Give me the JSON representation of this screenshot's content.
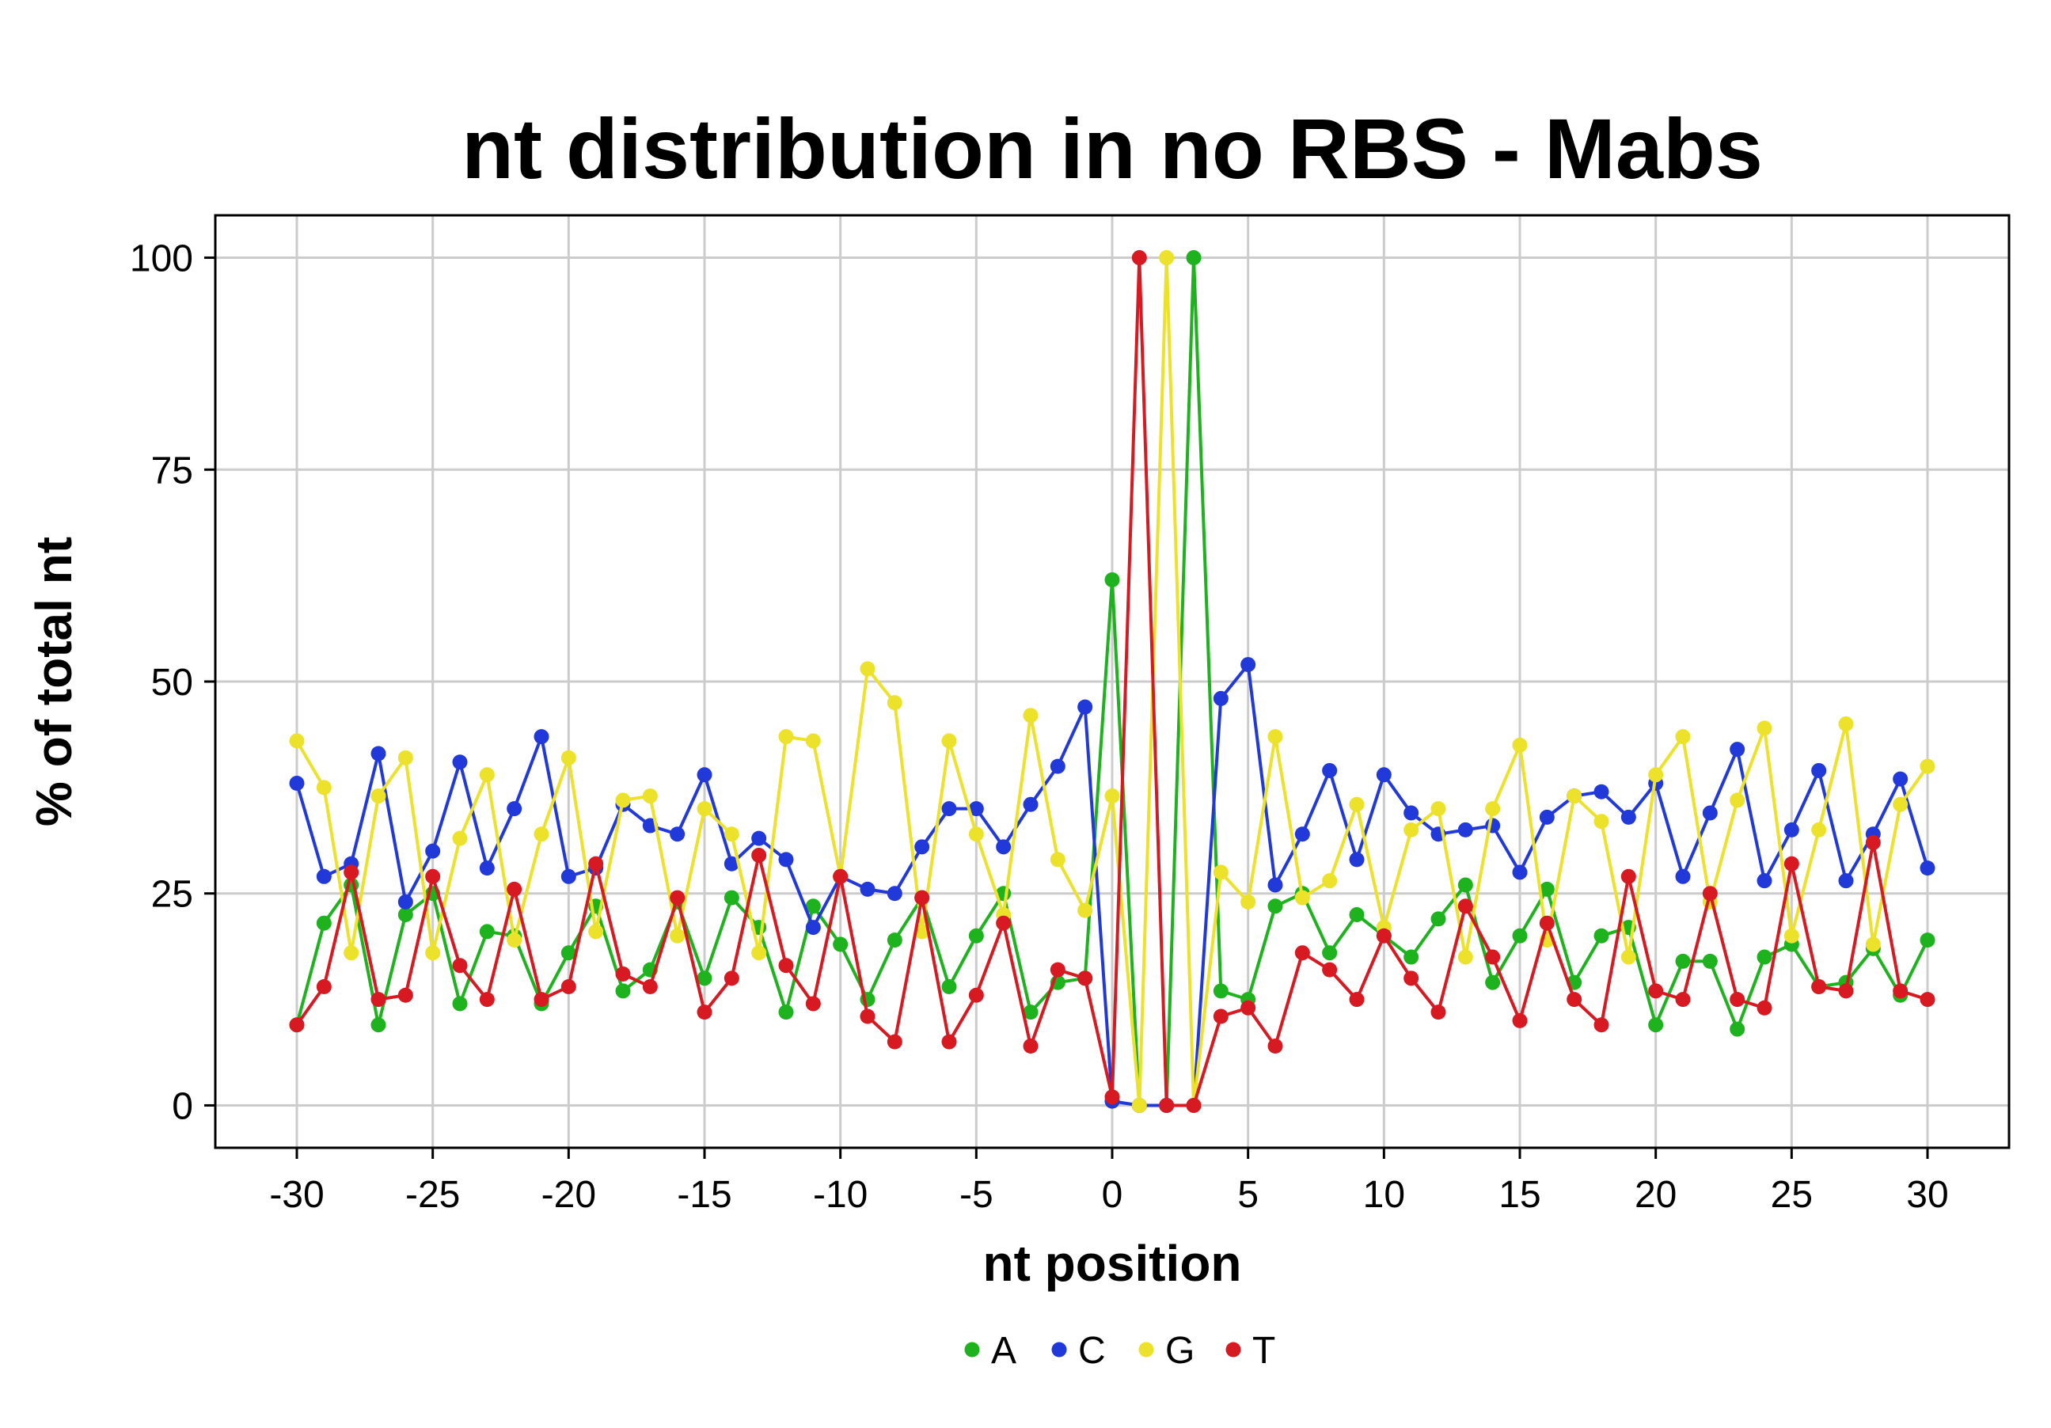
{
  "chart_data": {
    "type": "line",
    "title": "nt distribution in no RBS - Mabs",
    "xlabel": "nt position",
    "ylabel": "% of total nt",
    "xlim": [
      -33,
      33
    ],
    "ylim": [
      -5,
      105
    ],
    "xticks": [
      -30,
      -25,
      -20,
      -15,
      -10,
      -5,
      0,
      5,
      10,
      15,
      20,
      25,
      30
    ],
    "xtick_labels": [
      "-30",
      "-25",
      "-20",
      "-15",
      "-10",
      "-5",
      "0",
      "5",
      "10",
      "15",
      "20",
      "25",
      "30"
    ],
    "yticks": [
      0,
      25,
      50,
      75,
      100
    ],
    "ytick_labels": [
      "0",
      "25",
      "50",
      "75",
      "100"
    ],
    "grid": true,
    "legend_position": "bottom",
    "x": [
      -30,
      -29,
      -28,
      -27,
      -26,
      -25,
      -24,
      -23,
      -22,
      -21,
      -20,
      -19,
      -18,
      -17,
      -16,
      -15,
      -14,
      -13,
      -12,
      -11,
      -10,
      -9,
      -8,
      -7,
      -6,
      -5,
      -4,
      -3,
      -2,
      -1,
      0,
      1,
      2,
      3,
      4,
      5,
      6,
      7,
      8,
      9,
      10,
      11,
      12,
      13,
      14,
      15,
      16,
      17,
      18,
      19,
      20,
      21,
      22,
      23,
      24,
      25,
      26,
      27,
      28,
      29,
      30
    ],
    "series": [
      {
        "name": "A",
        "color": "#1fb21f",
        "values": [
          9.5,
          21.5,
          26,
          9.5,
          22.5,
          25,
          12,
          20.5,
          20,
          12,
          18,
          23.5,
          13.5,
          16,
          24,
          15,
          24.5,
          21,
          11,
          23.5,
          19,
          12.5,
          19.5,
          24.5,
          14,
          20,
          25,
          11,
          14.5,
          15,
          62,
          0,
          0,
          100,
          13.5,
          12.5,
          23.5,
          25,
          18,
          22.5,
          20,
          17.5,
          22,
          26,
          14.5,
          20,
          25.5,
          14.5,
          20,
          21,
          9.5,
          17,
          17,
          9,
          17.5,
          19,
          14,
          14.5,
          18.5,
          13,
          19.5
        ]
      },
      {
        "name": "C",
        "color": "#2239d9",
        "values": [
          38,
          27,
          28.5,
          41.5,
          24,
          30,
          40.5,
          28,
          35,
          43.5,
          27,
          28,
          35.5,
          33,
          32,
          39,
          28.5,
          31.5,
          29,
          21,
          27,
          25.5,
          25,
          30.5,
          35,
          35,
          30.5,
          35.5,
          40,
          47,
          0.5,
          0,
          0,
          0,
          48,
          52,
          26,
          32,
          39.5,
          29,
          39,
          34.5,
          32,
          32.5,
          33,
          27.5,
          34,
          36.5,
          37,
          34,
          38,
          27,
          34.5,
          42,
          26.5,
          32.5,
          39.5,
          26.5,
          32,
          38.5,
          28
        ]
      },
      {
        "name": "G",
        "color": "#ece12b",
        "values": [
          43,
          37.5,
          18,
          36.5,
          41,
          18,
          31.5,
          39,
          19.5,
          32,
          41,
          20.5,
          36,
          36.5,
          20,
          35,
          32,
          18,
          43.5,
          43,
          27,
          51.5,
          47.5,
          20.5,
          43,
          32,
          22.5,
          46,
          29,
          23,
          36.5,
          0,
          100,
          0,
          27.5,
          24,
          43.5,
          24.5,
          26.5,
          35.5,
          21,
          32.5,
          35,
          17.5,
          35,
          42.5,
          19.5,
          36.5,
          33.5,
          17.5,
          39,
          43.5,
          24,
          36,
          44.5,
          20,
          32.5,
          45,
          19,
          35.5,
          40
        ]
      },
      {
        "name": "T",
        "color": "#d71a22",
        "values": [
          9.5,
          14,
          27.5,
          12.5,
          13,
          27,
          16.5,
          12.5,
          25.5,
          12.5,
          14,
          28.5,
          15.5,
          14,
          24.5,
          11,
          15,
          29.5,
          16.5,
          12,
          27,
          10.5,
          7.5,
          24.5,
          7.5,
          13,
          21.5,
          7,
          16,
          15,
          1,
          100,
          0,
          0,
          10.5,
          11.5,
          7,
          18,
          16,
          12.5,
          20,
          15,
          11,
          23.5,
          17.5,
          10,
          21.5,
          12.5,
          9.5,
          27,
          13.5,
          12.5,
          25,
          12.5,
          11.5,
          28.5,
          14,
          13.5,
          31,
          13.5,
          12.5
        ]
      }
    ]
  }
}
